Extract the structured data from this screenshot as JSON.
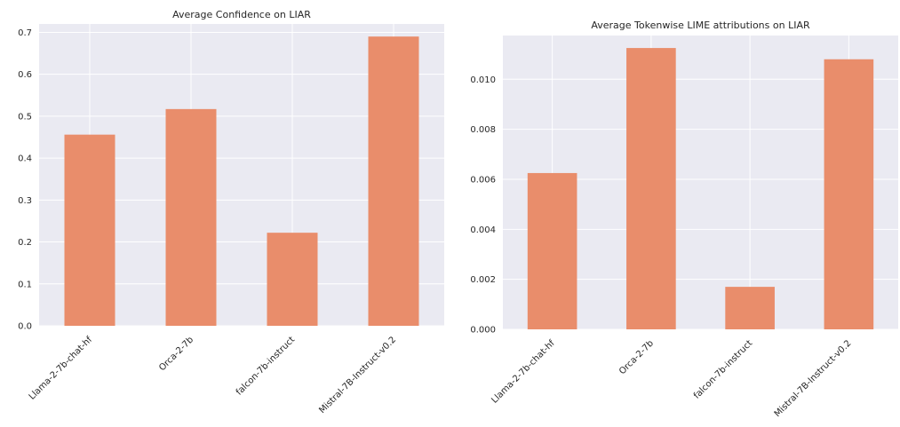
{
  "chart_data": [
    {
      "type": "bar",
      "title": "Average Confidence on LIAR",
      "xlabel": "",
      "ylabel": "",
      "categories": [
        "Llama-2-7b-chat-hf",
        "Orca-2-7b",
        "falcon-7b-instruct",
        "Mistral-7B-Instruct-v0.2"
      ],
      "values": [
        0.456,
        0.517,
        0.222,
        0.69
      ],
      "yticks": [
        "0.0",
        "0.1",
        "0.2",
        "0.3",
        "0.4",
        "0.5",
        "0.6",
        "0.7"
      ],
      "ylim": [
        0,
        0.72
      ],
      "grid": true,
      "bar_color": "#E98D6B",
      "background_color": "#EAEAF2"
    },
    {
      "type": "bar",
      "title": "Average Tokenwise LIME attributions on LIAR",
      "xlabel": "",
      "ylabel": "",
      "categories": [
        "Llama-2-7b-chat-hf",
        "Orca-2-7b",
        "falcon-7b-instruct",
        "Mistral-7B-Instruct-v0.2"
      ],
      "values": [
        0.00625,
        0.01125,
        0.0017,
        0.0108
      ],
      "yticks": [
        "0.000",
        "0.002",
        "0.004",
        "0.006",
        "0.008",
        "0.010"
      ],
      "ylim": [
        0,
        0.01175
      ],
      "grid": true,
      "bar_color": "#E98D6B",
      "background_color": "#EAEAF2"
    }
  ]
}
